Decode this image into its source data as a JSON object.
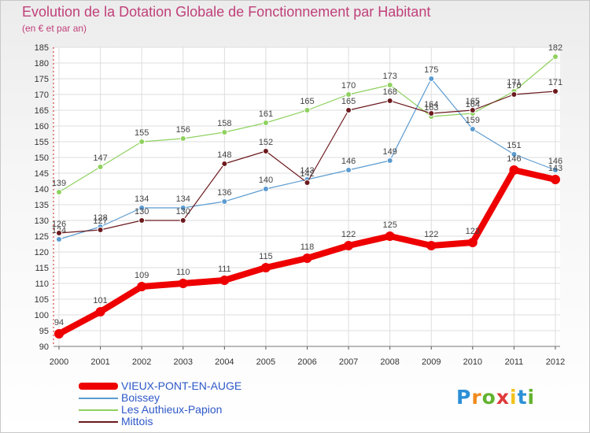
{
  "title": "Evolution de la Dotation Globale de Fonctionnement par Habitant",
  "subtitle": "(en € et par an)",
  "brand": {
    "letters": [
      "P",
      "r",
      "o",
      "x",
      "i",
      "t",
      "i"
    ],
    "colors": [
      "#2c8fd6",
      "#f08a1d",
      "#62b22f",
      "#e03a3a",
      "#f2c21b",
      "#2c8fd6",
      "#62b22f"
    ]
  },
  "chart_data": {
    "type": "line",
    "title": "Evolution de la Dotation Globale de Fonctionnement par Habitant",
    "subtitle": "(en € et par an)",
    "x": [
      "2000",
      "2001",
      "2002",
      "2003",
      "2004",
      "2005",
      "2006",
      "2007",
      "2008",
      "2009",
      "2010",
      "2011",
      "2012"
    ],
    "ylim": [
      90,
      185
    ],
    "yticks": [
      90,
      95,
      100,
      105,
      110,
      115,
      120,
      125,
      130,
      135,
      140,
      145,
      150,
      155,
      160,
      165,
      170,
      175,
      180,
      185
    ],
    "grid": true,
    "legend": "bottom-left",
    "series": [
      {
        "name": "Les Authieux-Papion",
        "color": "#8fd15f",
        "values": [
          139,
          147,
          155,
          156,
          158,
          161,
          165,
          170,
          173,
          163,
          164,
          171,
          182
        ]
      },
      {
        "name": "Boissey",
        "color": "#5b9bd0",
        "values": [
          124,
          128,
          134,
          134,
          136,
          140,
          143,
          146,
          149,
          175,
          159,
          151,
          146
        ]
      },
      {
        "name": "Mittois",
        "color": "#6b1a1e",
        "values": [
          126,
          127,
          130,
          130,
          148,
          152,
          142,
          165,
          168,
          164,
          165,
          170,
          171
        ]
      },
      {
        "name": "VIEUX-PONT-EN-AUGE",
        "color": "#ee0000",
        "values": [
          94,
          101,
          109,
          110,
          111,
          115,
          118,
          122,
          125,
          122,
          123,
          146,
          143
        ]
      }
    ]
  }
}
